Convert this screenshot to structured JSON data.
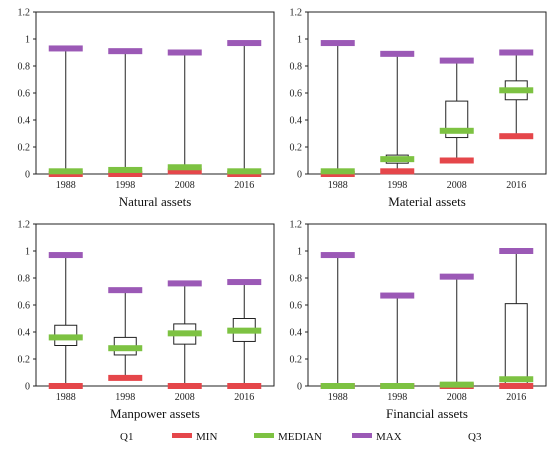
{
  "chart_data": [
    {
      "type": "box",
      "title": "Natural assets",
      "categories": [
        "1988",
        "1998",
        "2008",
        "2016"
      ],
      "ylim": [
        0,
        1.2
      ],
      "yticks": [
        0,
        0.2,
        0.4,
        0.6,
        0.8,
        1,
        1.2
      ],
      "ytick_labels": [
        "0",
        "0.2",
        "0.4",
        "0.6",
        "0.8",
        "1",
        "1.2"
      ],
      "min": [
        0.0,
        0.0,
        0.02,
        0.0
      ],
      "q1": [
        0.0,
        0.0,
        0.0,
        0.0
      ],
      "median": [
        0.02,
        0.03,
        0.05,
        0.02
      ],
      "q3": [
        0.03,
        0.04,
        0.06,
        0.03
      ],
      "max": [
        0.93,
        0.91,
        0.9,
        0.97
      ]
    },
    {
      "type": "box",
      "title": "Material assets",
      "categories": [
        "1988",
        "1998",
        "2008",
        "2016"
      ],
      "ylim": [
        0,
        1.2
      ],
      "yticks": [
        0,
        0.2,
        0.4,
        0.6,
        0.8,
        1,
        1.2
      ],
      "ytick_labels": [
        "0",
        "0.2",
        "0.4",
        "0.6",
        "0.8",
        "1",
        "1.2"
      ],
      "min": [
        0.0,
        0.02,
        0.1,
        0.28
      ],
      "q1": [
        0.0,
        0.08,
        0.27,
        0.55
      ],
      "median": [
        0.02,
        0.11,
        0.32,
        0.62
      ],
      "q3": [
        0.03,
        0.14,
        0.54,
        0.69
      ],
      "max": [
        0.97,
        0.89,
        0.84,
        0.9
      ]
    },
    {
      "type": "box",
      "title": "Manpower assets",
      "categories": [
        "1988",
        "1998",
        "2008",
        "2016"
      ],
      "ylim": [
        0,
        1.2
      ],
      "yticks": [
        0,
        0.2,
        0.4,
        0.6,
        0.8,
        1,
        1.2
      ],
      "ytick_labels": [
        "0",
        "0.2",
        "0.4",
        "0.6",
        "0.8",
        "1",
        "1.2"
      ],
      "min": [
        0.0,
        0.06,
        0.0,
        0.0
      ],
      "q1": [
        0.3,
        0.23,
        0.31,
        0.33
      ],
      "median": [
        0.36,
        0.28,
        0.39,
        0.41
      ],
      "q3": [
        0.45,
        0.36,
        0.46,
        0.5
      ],
      "max": [
        0.97,
        0.71,
        0.76,
        0.77
      ]
    },
    {
      "type": "box",
      "title": "Financial assets",
      "categories": [
        "1988",
        "1998",
        "2008",
        "2016"
      ],
      "ylim": [
        0,
        1.2
      ],
      "yticks": [
        0,
        0.2,
        0.4,
        0.6,
        0.8,
        1,
        1.2
      ],
      "ytick_labels": [
        "0",
        "0.2",
        "0.4",
        "0.6",
        "0.8",
        "1",
        "1.2"
      ],
      "min": [
        0.0,
        0.0,
        0.0,
        0.0
      ],
      "q1": [
        0.0,
        0.0,
        0.0,
        0.01
      ],
      "median": [
        0.0,
        0.0,
        0.01,
        0.05
      ],
      "q3": [
        0.01,
        0.01,
        0.02,
        0.61
      ],
      "max": [
        0.97,
        0.67,
        0.81,
        1.0
      ]
    }
  ],
  "legend": {
    "items": [
      {
        "label": "Q1",
        "color": "#ffffff",
        "marker": "none"
      },
      {
        "label": "MIN",
        "color": "#e5464a",
        "marker": "dash"
      },
      {
        "label": "MEDIAN",
        "color": "#7dc242",
        "marker": "dash"
      },
      {
        "label": "MAX",
        "color": "#9b59b6",
        "marker": "dash"
      },
      {
        "label": "Q3",
        "color": "#ffffff",
        "marker": "none"
      }
    ]
  },
  "colors": {
    "min": "#e5464a",
    "median": "#7dc242",
    "max": "#9b59b6",
    "box": "#222222",
    "frame": "#222222"
  }
}
